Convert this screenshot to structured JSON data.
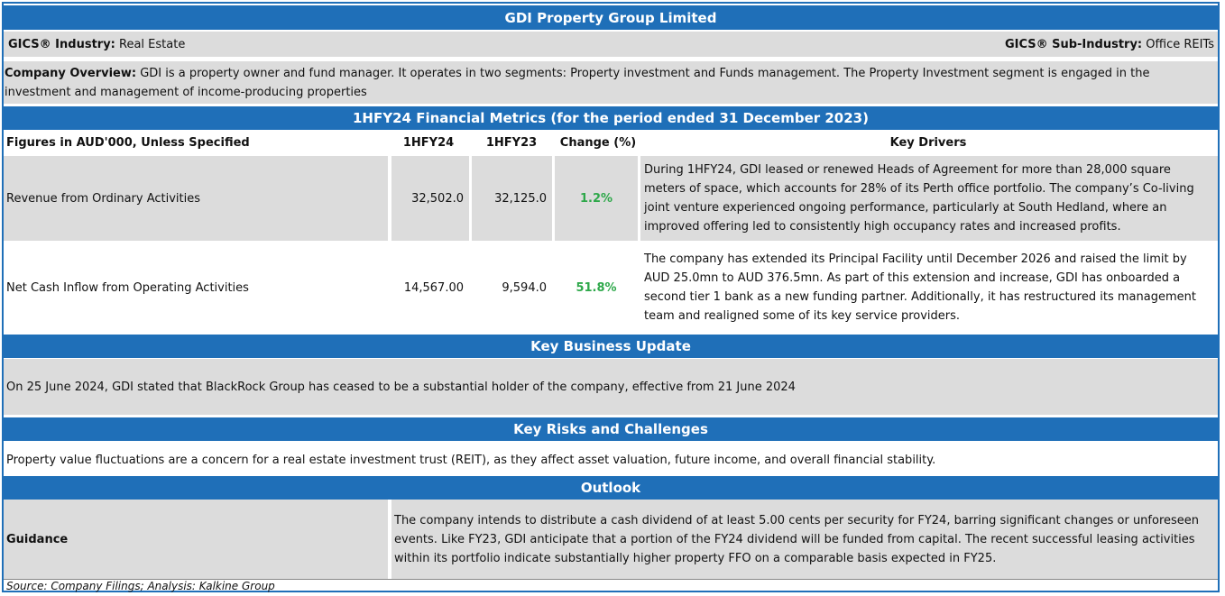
{
  "title": "GDI Property Group Limited",
  "industry": {
    "label": "GICS® Industry:",
    "value": "Real Estate"
  },
  "sub_industry": {
    "label": "GICS® Sub-Industry:",
    "value": "Office REITs"
  },
  "overview": {
    "label": "Company Overview:",
    "text": "GDI is a property owner and fund manager. It operates in two segments: Property investment and Funds management. The Property Investment segment is engaged in the investment and management of income-producing properties"
  },
  "metrics": {
    "title": "1HFY24 Financial Metrics (for the period ended 31 December 2023)",
    "headers": {
      "figures": "Figures in AUD'000, Unless Specified",
      "h1": "1HFY24",
      "h2": "1HFY23",
      "change": "Change (%)",
      "drivers": "Key Drivers"
    },
    "rows": [
      {
        "name": "Revenue from Ordinary Activities",
        "fy24": "32,502.0",
        "fy23": "32,125.0",
        "change": "1.2%",
        "driver": "During 1HFY24, GDI leased or renewed Heads of Agreement for more than 28,000 square meters of space, which accounts for 28% of its Perth office portfolio. The company’s Co-living joint venture experienced ongoing  performance, particularly at South Hedland, where an improved offering led to consistently high occupancy rates and increased profits."
      },
      {
        "name": "Net Cash Inflow from Operating Activities",
        "fy24": "14,567.00",
        "fy23": "9,594.0",
        "change": "51.8%",
        "driver": "The company has extended its Principal Facility until December 2026 and raised the limit by AUD 25.0mn to AUD 376.5mn. As part of this extension and increase, GDI has onboarded a second tier 1 bank as a new funding partner. Additionally, it has restructured its management team and realigned some of its key service providers."
      }
    ]
  },
  "business_update": {
    "title": "Key Business Update",
    "text": "On 25 June 2024, GDI stated that BlackRock Group has ceased to be a substantial holder of the company, effective from 21 June 2024"
  },
  "risks": {
    "title": "Key Risks and Challenges",
    "text": "Property value fluctuations are a concern for a real estate investment trust (REIT), as they affect asset valuation, future income, and overall financial stability."
  },
  "outlook": {
    "title": "Outlook",
    "label": "Guidance",
    "text": "The company intends to distribute a cash dividend of at least 5.00 cents per security for FY24, barring significant changes or unforeseen events. Like FY23, GDI anticipate that a portion of the FY24 dividend will be funded from capital. The recent successful leasing activities within its portfolio indicate substantially higher property FFO on a comparable basis expected in FY25."
  },
  "source": "Source: Company Filings; Analysis: Kalkine Group",
  "colors": {
    "header_blue": "#1f6fb8",
    "grey_fill": "#dcdcdc",
    "positive_green": "#2ea84a"
  }
}
